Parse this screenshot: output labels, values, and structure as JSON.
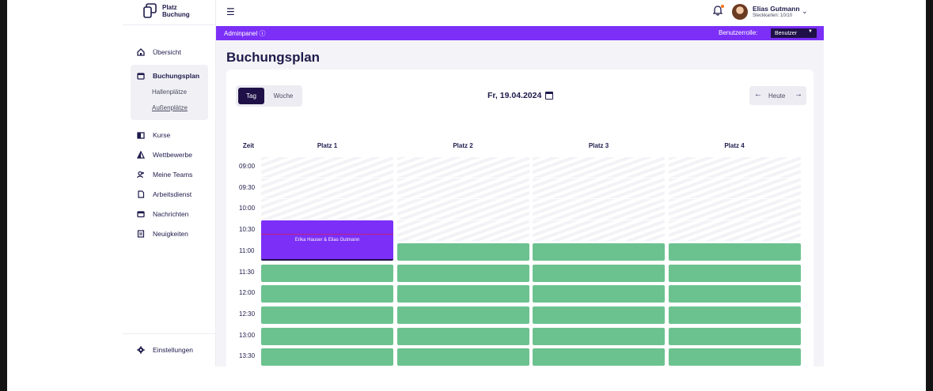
{
  "logo": {
    "line1": "Platz",
    "line2": "Buchung"
  },
  "sidebar": {
    "items": [
      {
        "label": "Übersicht",
        "icon": "home-icon"
      },
      {
        "label": "Buchungsplan",
        "icon": "calendar-icon",
        "sub": [
          "Hallenplätze",
          "Außenplätze"
        ],
        "active_sub": "Außenplätze"
      },
      {
        "label": "Kurse",
        "icon": "book-icon"
      },
      {
        "label": "Wettbewerbe",
        "icon": "trophy-icon"
      },
      {
        "label": "Meine Teams",
        "icon": "team-icon"
      },
      {
        "label": "Arbeitsdienst",
        "icon": "document-icon"
      },
      {
        "label": "Nachrichten",
        "icon": "mail-icon"
      },
      {
        "label": "Neuigkeiten",
        "icon": "news-icon"
      }
    ],
    "settings_label": "Einstellungen"
  },
  "topbar": {
    "user_name": "Elias Gutmann",
    "user_sub": "Steckkarten: 10/10"
  },
  "adminbar": {
    "label": "Adminpanel ⓘ",
    "role_label": "Benutzerrolle:",
    "role_value": "Benutzer"
  },
  "main": {
    "title": "Buchungsplan",
    "view_toggle": {
      "day": "Tag",
      "week": "Woche",
      "active": "Tag"
    },
    "date": "Fr, 19.04.2024",
    "today_label": "Heute"
  },
  "schedule": {
    "time_header": "Zeit",
    "courts": [
      "Platz 1",
      "Platz 2",
      "Platz 3",
      "Platz 4"
    ],
    "times": [
      "09:00",
      "09:30",
      "10:00",
      "10:30",
      "11:00",
      "11:30",
      "12:00",
      "12:30",
      "13:00",
      "13:30"
    ],
    "booking": {
      "court": "Platz 1",
      "start": "10:30",
      "end": "11:30",
      "label": "Erika Hauser & Elias Gutmann"
    },
    "colors": {
      "free": "#6cc28f",
      "booked": "#7b2ff7",
      "accent": "#7b2ff7",
      "dark": "#1f1147"
    }
  }
}
